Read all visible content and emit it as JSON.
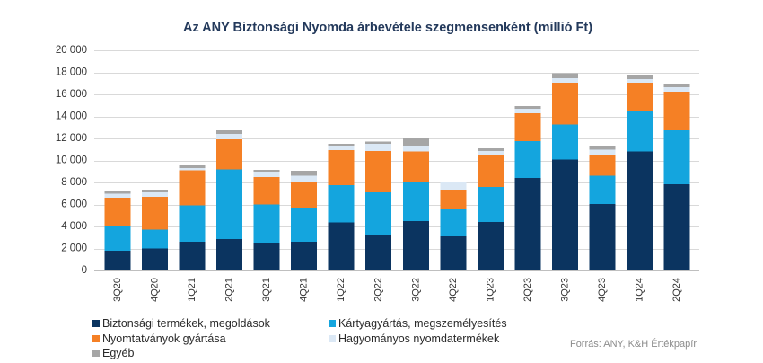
{
  "chart_data": {
    "type": "bar",
    "stacked": true,
    "title": "Az ANY Biztonsági Nyomda árbevétele szegmensenként (millió Ft)",
    "xlabel": "",
    "ylabel": "",
    "ylim": [
      0,
      20000
    ],
    "yticks": [
      0,
      2000,
      4000,
      6000,
      8000,
      10000,
      12000,
      14000,
      16000,
      18000,
      20000
    ],
    "ytick_labels": [
      "0",
      "2 000",
      "4 000",
      "6 000",
      "8 000",
      "10 000",
      "12 000",
      "14 000",
      "16 000",
      "18 000",
      "20 000"
    ],
    "grid": true,
    "legend_position": "bottom",
    "categories": [
      "3Q20",
      "4Q20",
      "1Q21",
      "2Q21",
      "3Q21",
      "4Q21",
      "1Q22",
      "2Q22",
      "3Q22",
      "4Q22",
      "1Q23",
      "2Q23",
      "3Q23",
      "4Q23",
      "1Q24",
      "2Q24"
    ],
    "series": [
      {
        "name": "Biztonsági termékek, megoldások",
        "color": "#0b3460",
        "values": [
          1800,
          2000,
          2600,
          2850,
          2450,
          2600,
          4350,
          3250,
          4500,
          3100,
          4400,
          8400,
          10100,
          6050,
          10800,
          7850
        ]
      },
      {
        "name": "Kártyagyártás, megszemélyesítés",
        "color": "#14a5de",
        "values": [
          2300,
          1700,
          3300,
          6350,
          3550,
          3050,
          3400,
          3850,
          3600,
          2450,
          3200,
          3350,
          3150,
          2550,
          3650,
          4900
        ]
      },
      {
        "name": "Nyomtatványok gyártása",
        "color": "#f58025",
        "values": [
          2500,
          3000,
          3200,
          2700,
          2500,
          2450,
          3200,
          3750,
          2700,
          1800,
          2850,
          2550,
          3800,
          1950,
          2600,
          3500
        ]
      },
      {
        "name": "Hagyományos nyomdatermékek",
        "color": "#dbe8f5",
        "values": [
          400,
          400,
          200,
          500,
          500,
          500,
          400,
          650,
          500,
          650,
          400,
          400,
          400,
          450,
          350,
          400
        ]
      },
      {
        "name": "Egyéb",
        "color": "#a6a6a6",
        "values": [
          200,
          200,
          250,
          350,
          150,
          450,
          150,
          200,
          700,
          50,
          250,
          250,
          450,
          350,
          300,
          300
        ]
      }
    ],
    "source": "Forrás: ANY, K&H Értékpapír"
  }
}
